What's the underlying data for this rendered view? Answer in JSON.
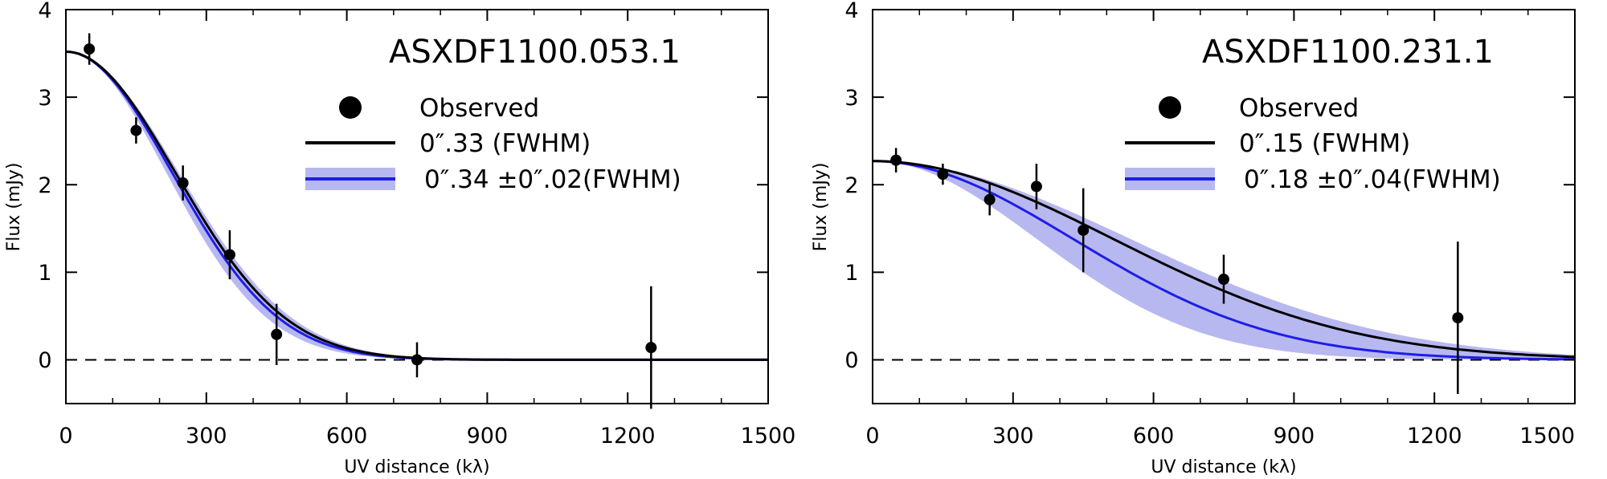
{
  "chart_data": [
    {
      "type": "scatter",
      "title": "ASXDF1100.053.1",
      "xlabel": "UV distance (kλ)",
      "ylabel": "Flux (mJy)",
      "xlim": [
        0,
        1500
      ],
      "ylim": [
        -0.5,
        4
      ],
      "xticks": [
        0,
        300,
        600,
        900,
        1200,
        1500
      ],
      "yticks": [
        0,
        1,
        2,
        3,
        4
      ],
      "zero_line": "dashed",
      "legend": {
        "position": "top-right",
        "observed_label": "Observed",
        "model_label": "0″.33 (FWHM)",
        "fit_label": "0″.34 ±0″.02(FWHM)"
      },
      "observed": {
        "x": [
          50,
          150,
          250,
          350,
          450,
          750,
          1250
        ],
        "y": [
          3.55,
          2.62,
          2.02,
          1.2,
          0.29,
          0.0,
          0.14
        ],
        "err": [
          0.18,
          0.15,
          0.2,
          0.28,
          0.35,
          0.2,
          0.7
        ]
      },
      "model_curve": {
        "name": "0″.33 (FWHM)",
        "amplitude": 3.52,
        "fwhm_arcsec": 0.33,
        "color": "#000000"
      },
      "fit_curve": {
        "name": "0″.34 ±0″.02(FWHM)",
        "amplitude": 3.52,
        "fwhm_arcsec": 0.34,
        "fwhm_err_arcsec": 0.02,
        "color": "#1e1ee6",
        "band_color": "#b8b8f0"
      }
    },
    {
      "type": "scatter",
      "title": "ASXDF1100.231.1",
      "xlabel": "UV distance (kλ)",
      "ylabel": "Flux (mJy)",
      "xlim": [
        0,
        1500
      ],
      "ylim": [
        -0.5,
        4
      ],
      "xticks": [
        0,
        300,
        600,
        900,
        1200,
        1500
      ],
      "yticks": [
        0,
        1,
        2,
        3,
        4
      ],
      "zero_line": "dashed",
      "legend": {
        "position": "top-right",
        "observed_label": "Observed",
        "model_label": "0″.15 (FWHM)",
        "fit_label": "0″.18 ±0″.04(FWHM)"
      },
      "observed": {
        "x": [
          50,
          150,
          250,
          350,
          450,
          750,
          1250
        ],
        "y": [
          2.28,
          2.12,
          1.83,
          1.98,
          1.48,
          0.92,
          0.48
        ],
        "err": [
          0.14,
          0.12,
          0.18,
          0.26,
          0.48,
          0.28,
          0.87
        ]
      },
      "model_curve": {
        "name": "0″.15 (FWHM)",
        "amplitude": 2.27,
        "fwhm_arcsec": 0.15,
        "color": "#000000"
      },
      "fit_curve": {
        "name": "0″.18 ±0″.04(FWHM)",
        "amplitude": 2.27,
        "fwhm_arcsec": 0.18,
        "fwhm_err_arcsec": 0.04,
        "color": "#1e1ee6",
        "band_color": "#b8b8f0"
      }
    }
  ]
}
